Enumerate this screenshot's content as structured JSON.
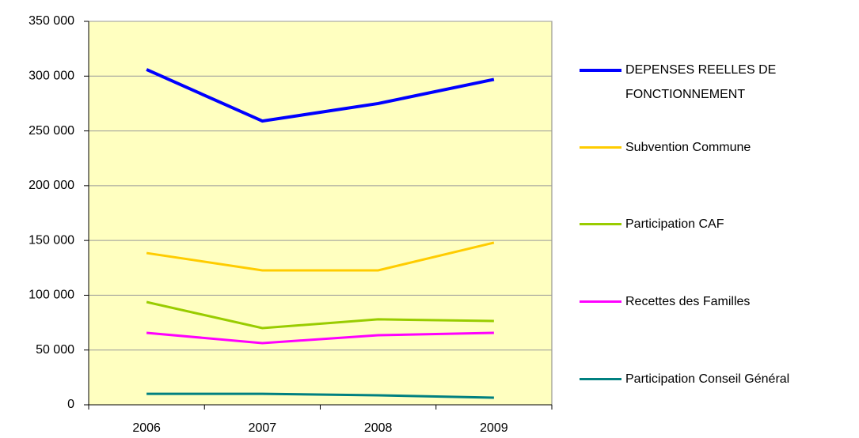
{
  "chart_data": {
    "type": "line",
    "categories": [
      "2006",
      "2007",
      "2008",
      "2009"
    ],
    "series": [
      {
        "name": "DEPENSES REELLES DE FONCTIONNEMENT",
        "color": "#0000ff",
        "values": [
          306000,
          259000,
          275000,
          297000
        ]
      },
      {
        "name": "Subvention Commune",
        "color": "#ffcc00",
        "values": [
          138500,
          122700,
          122700,
          148000
        ]
      },
      {
        "name": "Participation CAF",
        "color": "#99cc00",
        "values": [
          93800,
          70000,
          78000,
          76500
        ]
      },
      {
        "name": "Recettes des Familles",
        "color": "#ff00ff",
        "values": [
          65700,
          56300,
          63500,
          65700
        ]
      },
      {
        "name": "Participation Conseil Général",
        "color": "#008080",
        "values": [
          10000,
          10000,
          8700,
          6500
        ]
      }
    ],
    "ylim": [
      0,
      350000
    ],
    "yticks": [
      {
        "value": 0,
        "label": "0"
      },
      {
        "value": 50000,
        "label": "50 000"
      },
      {
        "value": 100000,
        "label": "100 000"
      },
      {
        "value": 150000,
        "label": "150 000"
      },
      {
        "value": 200000,
        "label": "200 000"
      },
      {
        "value": 250000,
        "label": "250 000"
      },
      {
        "value": 300000,
        "label": "300 000"
      },
      {
        "value": 350000,
        "label": "350 000"
      }
    ],
    "grid": true,
    "legend": "right",
    "background": "#ffffc0"
  }
}
